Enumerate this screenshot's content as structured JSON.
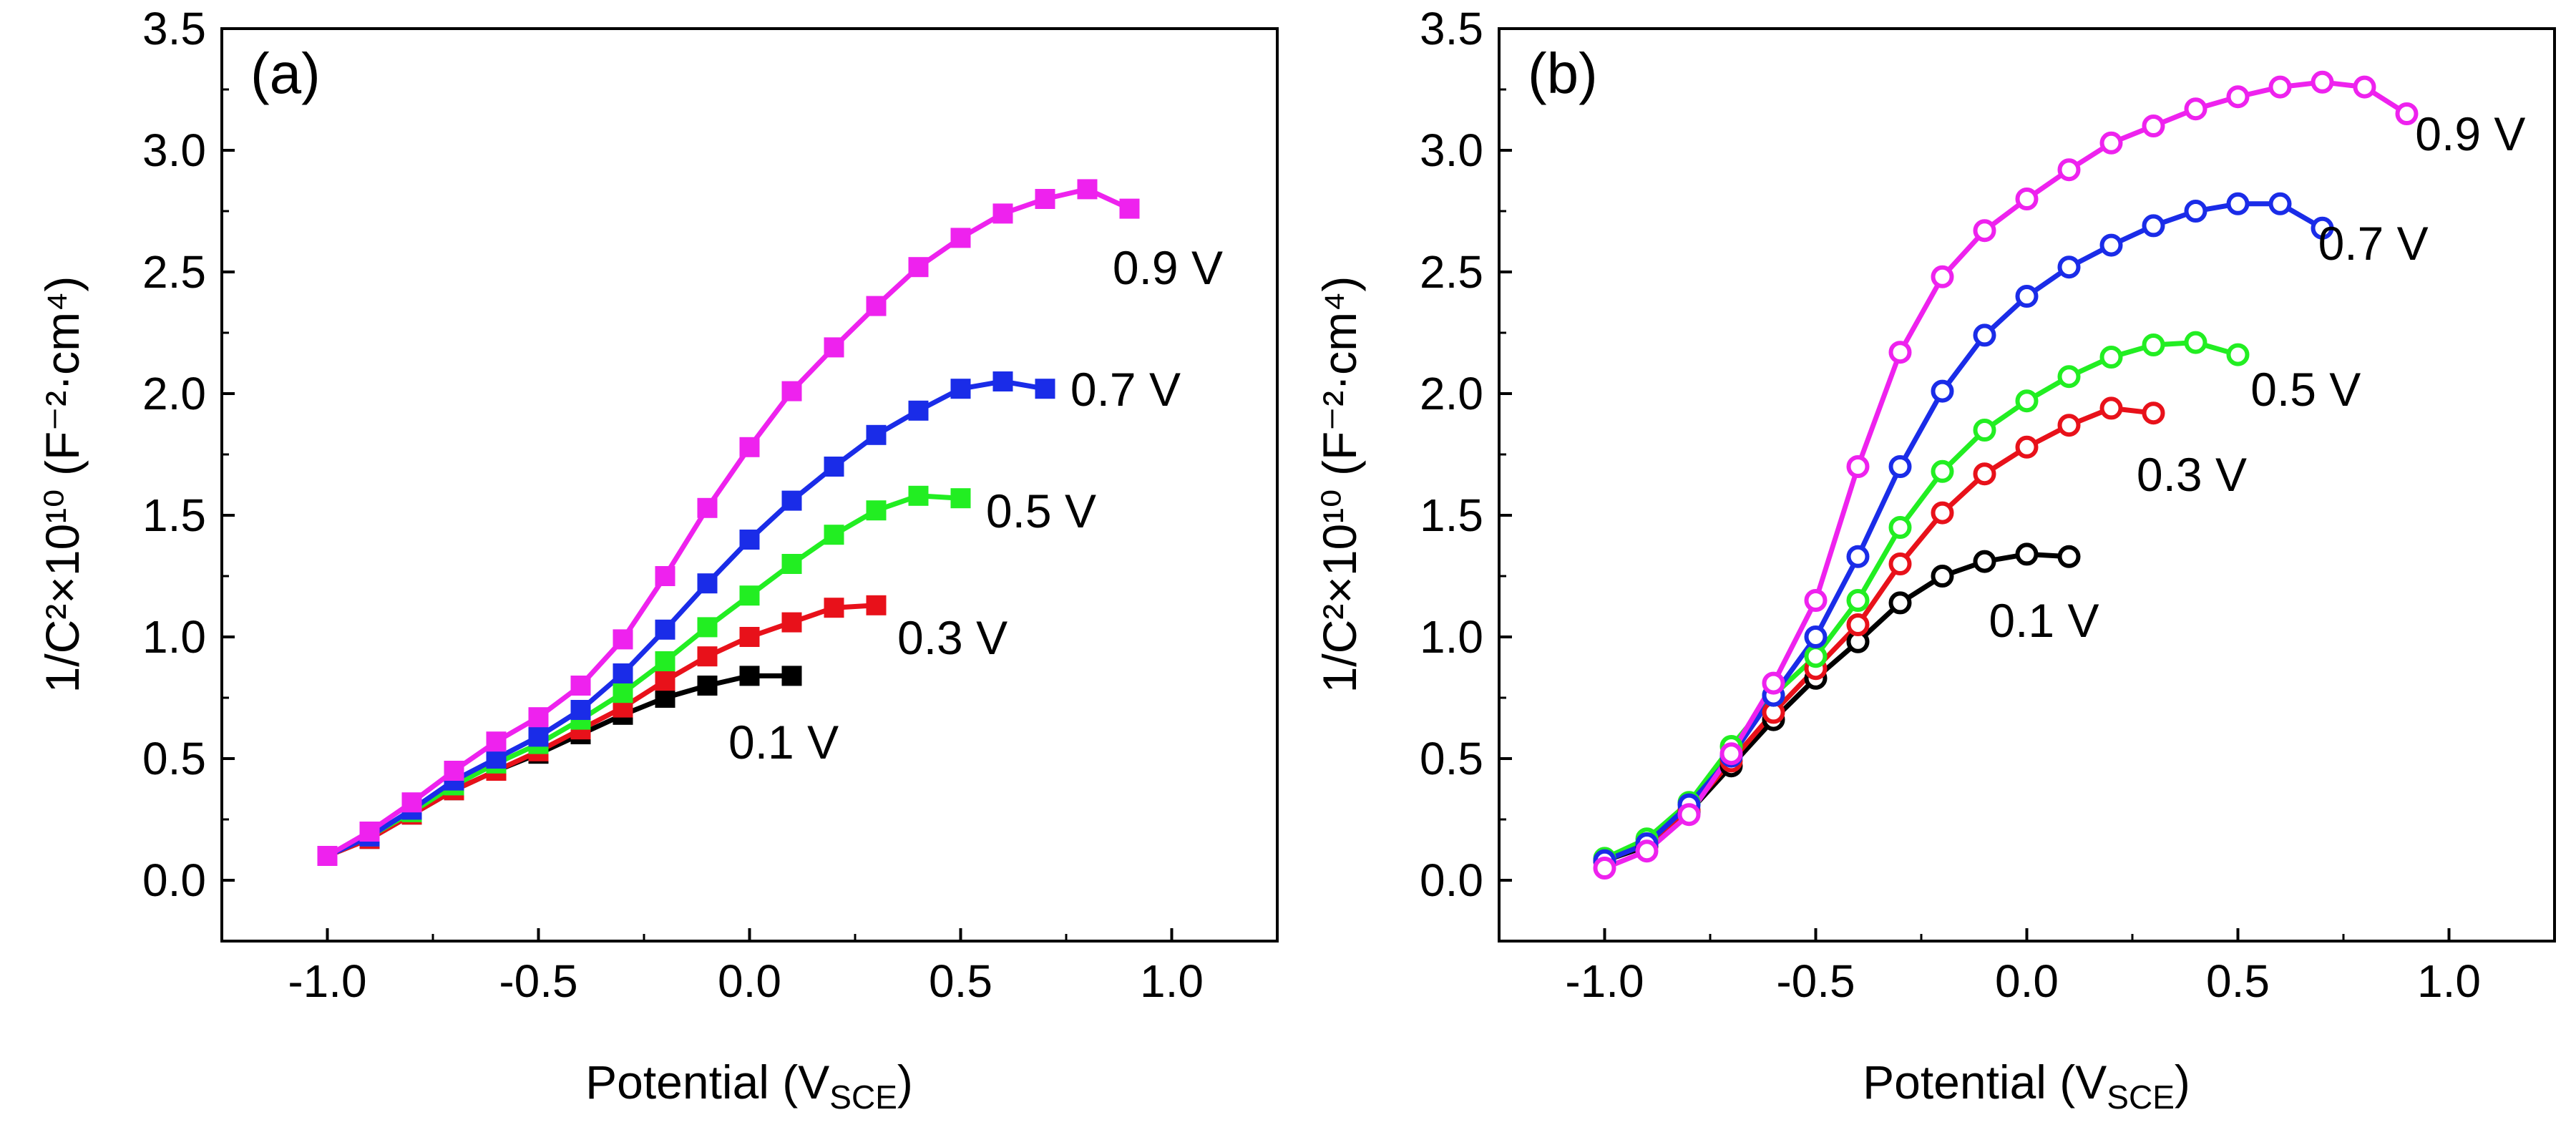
{
  "chart_data": [
    {
      "panel": "(a)",
      "type": "line",
      "marker": "filled-square",
      "xlabel": "Potential (V",
      "xlabel_sub": "SCE",
      "xlabel_end": ")",
      "ylabel": "1/C²×10¹⁰ (F⁻²·cm⁴)",
      "xlim": [
        -1.25,
        1.25
      ],
      "ylim": [
        -0.25,
        3.5
      ],
      "xticks": [
        -1.0,
        -0.5,
        0.0,
        0.5,
        1.0
      ],
      "xtick_labels": [
        "-1.0",
        "-0.5",
        "0.0",
        "0.5",
        "1.0"
      ],
      "yticks": [
        0.0,
        0.5,
        1.0,
        1.5,
        2.0,
        2.5,
        3.0,
        3.5
      ],
      "ytick_labels": [
        "0.0",
        "0.5",
        "1.0",
        "1.5",
        "2.0",
        "2.5",
        "3.0",
        "3.5"
      ],
      "series": [
        {
          "name": "0.1 V",
          "label": "0.1 V",
          "color": "#000000",
          "label_x": -0.05,
          "label_y": 0.5,
          "x": [
            -1.0,
            -0.9,
            -0.8,
            -0.7,
            -0.6,
            -0.5,
            -0.4,
            -0.3,
            -0.2,
            -0.1,
            0.0,
            0.1
          ],
          "y": [
            0.1,
            0.17,
            0.27,
            0.37,
            0.45,
            0.52,
            0.6,
            0.68,
            0.75,
            0.8,
            0.84,
            0.84
          ]
        },
        {
          "name": "0.3 V",
          "label": "0.3 V",
          "color": "#e8111a",
          "label_x": 0.35,
          "label_y": 0.93,
          "x": [
            -1.0,
            -0.9,
            -0.8,
            -0.7,
            -0.6,
            -0.5,
            -0.4,
            -0.3,
            -0.2,
            -0.1,
            0.0,
            0.1,
            0.2,
            0.3
          ],
          "y": [
            0.1,
            0.17,
            0.27,
            0.37,
            0.45,
            0.53,
            0.62,
            0.71,
            0.82,
            0.92,
            1.0,
            1.06,
            1.12,
            1.13
          ]
        },
        {
          "name": "0.5 V",
          "label": "0.5 V",
          "color": "#22ee22",
          "label_x": 0.56,
          "label_y": 1.45,
          "x": [
            -1.0,
            -0.9,
            -0.8,
            -0.7,
            -0.6,
            -0.5,
            -0.4,
            -0.3,
            -0.2,
            -0.1,
            0.0,
            0.1,
            0.2,
            0.3,
            0.4,
            0.5
          ],
          "y": [
            0.1,
            0.18,
            0.28,
            0.39,
            0.48,
            0.56,
            0.66,
            0.77,
            0.9,
            1.04,
            1.17,
            1.3,
            1.42,
            1.52,
            1.58,
            1.57
          ]
        },
        {
          "name": "0.7 V",
          "label": "0.7 V",
          "color": "#1a2ce8",
          "label_x": 0.76,
          "label_y": 1.95,
          "x": [
            -1.0,
            -0.9,
            -0.8,
            -0.7,
            -0.6,
            -0.5,
            -0.4,
            -0.3,
            -0.2,
            -0.1,
            0.0,
            0.1,
            0.2,
            0.3,
            0.4,
            0.5,
            0.6,
            0.7
          ],
          "y": [
            0.1,
            0.18,
            0.29,
            0.41,
            0.5,
            0.59,
            0.7,
            0.85,
            1.03,
            1.22,
            1.4,
            1.56,
            1.7,
            1.83,
            1.93,
            2.02,
            2.05,
            2.02
          ]
        },
        {
          "name": "0.9 V",
          "label": "0.9 V",
          "color": "#ee22ee",
          "label_x": 0.86,
          "label_y": 2.45,
          "x": [
            -1.0,
            -0.9,
            -0.8,
            -0.7,
            -0.6,
            -0.5,
            -0.4,
            -0.3,
            -0.2,
            -0.1,
            0.0,
            0.1,
            0.2,
            0.3,
            0.4,
            0.5,
            0.6,
            0.7,
            0.8,
            0.9
          ],
          "y": [
            0.1,
            0.2,
            0.32,
            0.45,
            0.57,
            0.67,
            0.8,
            0.99,
            1.25,
            1.53,
            1.78,
            2.01,
            2.19,
            2.36,
            2.52,
            2.64,
            2.74,
            2.8,
            2.84,
            2.76
          ]
        }
      ]
    },
    {
      "panel": "(b)",
      "type": "line",
      "marker": "open-circle",
      "xlabel": "Potential (V",
      "xlabel_sub": "SCE",
      "xlabel_end": ")",
      "ylabel": "1/C²×10¹⁰ (F⁻²·cm⁴)",
      "xlim": [
        -1.25,
        1.25
      ],
      "ylim": [
        -0.25,
        3.5
      ],
      "xticks": [
        -1.0,
        -0.5,
        0.0,
        0.5,
        1.0
      ],
      "xtick_labels": [
        "-1.0",
        "-0.5",
        "0.0",
        "0.5",
        "1.0"
      ],
      "yticks": [
        0.0,
        0.5,
        1.0,
        1.5,
        2.0,
        2.5,
        3.0,
        3.5
      ],
      "ytick_labels": [
        "0.0",
        "0.5",
        "1.0",
        "1.5",
        "2.0",
        "2.5",
        "3.0",
        "3.5"
      ],
      "series": [
        {
          "name": "0.1 V",
          "label": "0.1 V",
          "color": "#000000",
          "label_x": -0.09,
          "label_y": 1.0,
          "x": [
            -1.0,
            -0.9,
            -0.8,
            -0.7,
            -0.6,
            -0.5,
            -0.4,
            -0.3,
            -0.2,
            -0.1,
            0.0,
            0.1
          ],
          "y": [
            0.08,
            0.14,
            0.28,
            0.47,
            0.66,
            0.83,
            0.98,
            1.14,
            1.25,
            1.31,
            1.34,
            1.33
          ]
        },
        {
          "name": "0.3 V",
          "label": "0.3 V",
          "color": "#e8111a",
          "label_x": 0.26,
          "label_y": 1.6,
          "x": [
            -1.0,
            -0.9,
            -0.8,
            -0.7,
            -0.6,
            -0.5,
            -0.4,
            -0.3,
            -0.2,
            -0.1,
            0.0,
            0.1,
            0.2,
            0.3
          ],
          "y": [
            0.08,
            0.15,
            0.29,
            0.49,
            0.69,
            0.87,
            1.05,
            1.3,
            1.51,
            1.67,
            1.78,
            1.87,
            1.94,
            1.92
          ]
        },
        {
          "name": "0.5 V",
          "label": "0.5 V",
          "color": "#22ee22",
          "label_x": 0.53,
          "label_y": 1.95,
          "x": [
            -1.0,
            -0.9,
            -0.8,
            -0.7,
            -0.6,
            -0.5,
            -0.4,
            -0.3,
            -0.2,
            -0.1,
            0.0,
            0.1,
            0.2,
            0.3,
            0.4,
            0.5
          ],
          "y": [
            0.09,
            0.17,
            0.32,
            0.55,
            0.76,
            0.92,
            1.15,
            1.45,
            1.68,
            1.85,
            1.97,
            2.07,
            2.15,
            2.2,
            2.21,
            2.16
          ]
        },
        {
          "name": "0.7 V",
          "label": "0.7 V",
          "color": "#1a2ce8",
          "label_x": 0.69,
          "label_y": 2.55,
          "x": [
            -1.0,
            -0.9,
            -0.8,
            -0.7,
            -0.6,
            -0.5,
            -0.4,
            -0.3,
            -0.2,
            -0.1,
            0.0,
            0.1,
            0.2,
            0.3,
            0.4,
            0.5,
            0.6,
            0.7
          ],
          "y": [
            0.08,
            0.15,
            0.31,
            0.51,
            0.76,
            1.0,
            1.33,
            1.7,
            2.01,
            2.24,
            2.4,
            2.52,
            2.61,
            2.69,
            2.75,
            2.78,
            2.78,
            2.68
          ]
        },
        {
          "name": "0.9 V",
          "label": "0.9 V",
          "color": "#ee22ee",
          "label_x": 0.92,
          "label_y": 3.0,
          "x": [
            -1.0,
            -0.9,
            -0.8,
            -0.7,
            -0.6,
            -0.5,
            -0.4,
            -0.3,
            -0.2,
            -0.1,
            0.0,
            0.1,
            0.2,
            0.3,
            0.4,
            0.5,
            0.6,
            0.7,
            0.8,
            0.9
          ],
          "y": [
            0.05,
            0.12,
            0.27,
            0.52,
            0.81,
            1.15,
            1.7,
            2.17,
            2.48,
            2.67,
            2.8,
            2.92,
            3.03,
            3.1,
            3.17,
            3.22,
            3.26,
            3.28,
            3.26,
            3.15
          ]
        }
      ]
    }
  ]
}
